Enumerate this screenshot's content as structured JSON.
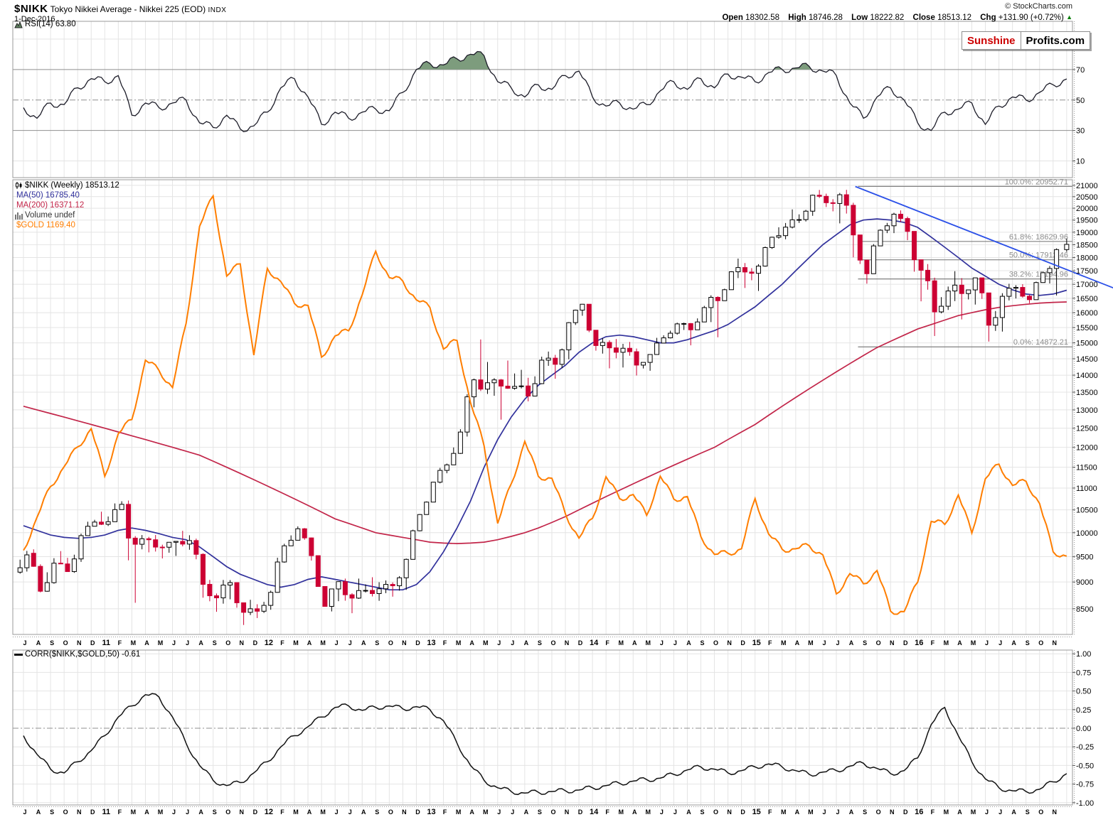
{
  "header": {
    "symbol": "$NIKK",
    "title": "Tokyo Nikkei Average - Nikkei 225 (EOD)",
    "exchange": "INDX",
    "date": "1-Dec-2016",
    "copyright": "© StockCharts.com",
    "ohlc": {
      "open_label": "Open",
      "open": "18302.58",
      "high_label": "High",
      "high": "18746.28",
      "low_label": "Low",
      "low": "18222.82",
      "close_label": "Close",
      "close": "18513.12",
      "chg_label": "Chg",
      "chg": "+131.90 (+0.72%)",
      "direction": "▲"
    }
  },
  "logo": {
    "red": "Sunshine",
    "black": "Profits.com"
  },
  "legends": {
    "rsi": "RSI(14) 63.80",
    "nikk": "$NIKK (Weekly) 18513.12",
    "ma50": "MA(50) 16785.40",
    "ma200": "MA(200) 16371.12",
    "volume": "Volume undef",
    "gold": "$GOLD 1169.40",
    "corr": "CORR($NIKK,$GOLD,50) -0.61"
  },
  "colors": {
    "grid": "#e4e4e4",
    "panel_border": "#999999",
    "guide": "#8f8f8f",
    "down_candle": "#cc0033",
    "candle_outline": "#000000",
    "up_candle_fill": "#ffffff",
    "ma50": "#31319c",
    "ma200": "#c22549",
    "gold": "#ff7e00",
    "trendline": "#2b50e8",
    "rsi_line": "#1c1c28",
    "rsi_fill": "#7d9c7d",
    "corr_line": "#111111",
    "fib": "#808080",
    "fib_text": "#8c8c8c",
    "change_up": "#067d06",
    "logo_red": "#cc0000",
    "nikk_text": "#000000",
    "volume_text": "#333333"
  },
  "chart_data": {
    "type": "candlestick",
    "title": "$NIKK (Weekly) with MA(50), MA(200), $GOLD overlay, RSI(14) and CORR($NIKK,$GOLD,50)",
    "x_axis": {
      "start": "Jul-2010",
      "end": "Dec-2016",
      "month_labels": [
        "J",
        "A",
        "S",
        "O",
        "N",
        "D",
        "11",
        "F",
        "M",
        "A",
        "M",
        "J",
        "J",
        "A",
        "S",
        "O",
        "N",
        "D",
        "12",
        "F",
        "M",
        "A",
        "M",
        "J",
        "J",
        "A",
        "S",
        "O",
        "N",
        "D",
        "13",
        "F",
        "M",
        "A",
        "M",
        "J",
        "J",
        "A",
        "S",
        "O",
        "N",
        "D",
        "14",
        "F",
        "M",
        "A",
        "M",
        "J",
        "J",
        "A",
        "S",
        "O",
        "N",
        "D",
        "15",
        "F",
        "M",
        "A",
        "M",
        "J",
        "J",
        "A",
        "S",
        "O",
        "N",
        "D",
        "16",
        "F",
        "M",
        "A",
        "M",
        "J",
        "J",
        "A",
        "S",
        "O",
        "N"
      ],
      "year_label_indices": [
        6,
        18,
        30,
        42,
        54,
        66
      ]
    },
    "last_candle_partial": true,
    "panels": {
      "rsi": {
        "label": "RSI(14)",
        "last_value": 63.8,
        "ylim": [
          0,
          100
        ],
        "ticks": [
          90,
          70,
          50,
          30,
          10
        ],
        "overbought": 70,
        "oversold": 30,
        "values": [
          45,
          38,
          48,
          47,
          58,
          64,
          62,
          66,
          40,
          48,
          45,
          48,
          50,
          35,
          32,
          40,
          31,
          33,
          42,
          58,
          64,
          52,
          34,
          42,
          38,
          42,
          44,
          43,
          55,
          70,
          74,
          73,
          77,
          80,
          79,
          62,
          58,
          52,
          60,
          57,
          66,
          69,
          52,
          46,
          48,
          44,
          47,
          56,
          62,
          57,
          64,
          58,
          67,
          65,
          62,
          68,
          70,
          71,
          72,
          69,
          66,
          48,
          38,
          52,
          58,
          50,
          35,
          30,
          42,
          44,
          48,
          34,
          46,
          52,
          50,
          55,
          60,
          63.8
        ]
      },
      "price": {
        "scale": "log",
        "ylim": [
          8046,
          21254
        ],
        "ticks": [
          21000,
          20500,
          20000,
          19500,
          19000,
          18500,
          18000,
          17500,
          17000,
          16500,
          16000,
          15500,
          15000,
          14500,
          14000,
          13500,
          13000,
          12500,
          12000,
          11500,
          11000,
          10500,
          10000,
          9500,
          9000,
          8500
        ],
        "ohlc_monthly": [
          [
            9191,
            9807,
            9091,
            9537
          ],
          [
            9570,
            9704,
            8796,
            8824
          ],
          [
            8824,
            9704,
            8797,
            9369
          ],
          [
            9369,
            9777,
            9202,
            9202
          ],
          [
            9202,
            10080,
            9123,
            9937
          ],
          [
            9937,
            10394,
            9937,
            10229
          ],
          [
            10229,
            10620,
            10180,
            10237
          ],
          [
            10237,
            10857,
            10238,
            10624
          ],
          [
            10624,
            10768,
            8227,
            9755
          ],
          [
            9755,
            9980,
            9406,
            9850
          ],
          [
            9850,
            10017,
            9388,
            9694
          ],
          [
            9694,
            9797,
            9318,
            9816
          ],
          [
            9816,
            10207,
            9660,
            9833
          ],
          [
            9833,
            9901,
            8619,
            8955
          ],
          [
            8955,
            9098,
            8359,
            8700
          ],
          [
            8700,
            9152,
            8343,
            8988
          ],
          [
            8988,
            8988,
            8135,
            8435
          ],
          [
            8435,
            8729,
            8272,
            8455
          ],
          [
            8455,
            8911,
            8349,
            8803
          ],
          [
            8803,
            9866,
            8784,
            9723
          ],
          [
            9723,
            10255,
            9723,
            10084
          ],
          [
            10084,
            10109,
            9388,
            9521
          ],
          [
            9521,
            9524,
            8543,
            8543
          ],
          [
            8543,
            9007,
            8238,
            9007
          ],
          [
            9007,
            9104,
            8328,
            8695
          ],
          [
            8695,
            9222,
            8647,
            8840
          ],
          [
            8840,
            9288,
            8661,
            8870
          ],
          [
            8870,
            9055,
            8596,
            8928
          ],
          [
            8928,
            9500,
            8619,
            9446
          ],
          [
            9446,
            10433,
            9429,
            10395
          ],
          [
            10395,
            11164,
            10398,
            11139
          ],
          [
            11139,
            11662,
            11046,
            11559
          ],
          [
            11559,
            12650,
            11542,
            12398
          ],
          [
            12398,
            13983,
            12003,
            13861
          ],
          [
            13861,
            15943,
            13589,
            13775
          ],
          [
            13775,
            13860,
            12415,
            13677
          ],
          [
            13677,
            14953,
            13613,
            13668
          ],
          [
            13668,
            14466,
            13188,
            13389
          ],
          [
            13389,
            14817,
            13369,
            14456
          ],
          [
            14456,
            14799,
            13748,
            14328
          ],
          [
            14328,
            15727,
            13932,
            15662
          ],
          [
            15662,
            16320,
            15407,
            16291
          ],
          [
            16291,
            16291,
            14699,
            14914
          ],
          [
            14914,
            15140,
            13995,
            14841
          ],
          [
            14841,
            15312,
            14203,
            14828
          ],
          [
            14828,
            15164,
            13885,
            14304
          ],
          [
            14304,
            14636,
            13964,
            14632
          ],
          [
            14632,
            15442,
            14632,
            15162
          ],
          [
            15162,
            15759,
            15101,
            15621
          ],
          [
            15621,
            15669,
            14753,
            15425
          ],
          [
            15425,
            16374,
            15425,
            16174
          ],
          [
            16174,
            16533,
            14529,
            16414
          ],
          [
            16414,
            17520,
            16414,
            17460
          ],
          [
            17460,
            18030,
            16672,
            17451
          ],
          [
            17451,
            17916,
            16592,
            17674
          ],
          [
            17674,
            18865,
            17606,
            18798
          ],
          [
            18798,
            19778,
            18604,
            19207
          ],
          [
            19207,
            20252,
            19034,
            19520
          ],
          [
            19520,
            20655,
            19257,
            20563
          ],
          [
            20563,
            20952,
            19990,
            20236
          ],
          [
            20236,
            20841,
            19115,
            20585
          ],
          [
            20585,
            20946,
            17714,
            18890
          ],
          [
            18890,
            18890,
            16901,
            17388
          ],
          [
            17388,
            19202,
            17388,
            19083
          ],
          [
            19083,
            19944,
            18683,
            19747
          ],
          [
            19747,
            20012,
            18562,
            19034
          ],
          [
            19034,
            19034,
            16017,
            17518
          ],
          [
            17518,
            17905,
            14953,
            16027
          ],
          [
            16027,
            17291,
            15857,
            16759
          ],
          [
            16759,
            17613,
            15471,
            16666
          ],
          [
            16666,
            17251,
            15975,
            17235
          ],
          [
            17235,
            17235,
            14864,
            15576
          ],
          [
            15576,
            16938,
            14952,
            16569
          ],
          [
            16569,
            17156,
            16083,
            16887
          ],
          [
            16887,
            17081,
            16285,
            16450
          ],
          [
            16450,
            17482,
            16436,
            17425
          ],
          [
            17425,
            18465,
            16111,
            18308
          ],
          [
            18308,
            18746,
            18222,
            18513
          ]
        ],
        "ma50": [
          10150,
          10050,
          9950,
          9900,
          9880,
          9900,
          9950,
          10050,
          10100,
          10050,
          9980,
          9900,
          9850,
          9700,
          9500,
          9300,
          9150,
          9050,
          8950,
          8900,
          8950,
          9050,
          9100,
          9050,
          9000,
          8950,
          8900,
          8850,
          8850,
          8950,
          9200,
          9600,
          10100,
          10700,
          11500,
          12200,
          12800,
          13300,
          13700,
          14000,
          14300,
          14700,
          15000,
          15200,
          15250,
          15200,
          15100,
          15000,
          15000,
          15100,
          15250,
          15400,
          15600,
          15900,
          16200,
          16600,
          17000,
          17500,
          18000,
          18500,
          18900,
          19300,
          19500,
          19550,
          19500,
          19400,
          19200,
          18800,
          18400,
          18000,
          17600,
          17300,
          17000,
          16800,
          16650,
          16600,
          16650,
          16785
        ],
        "ma200": [
          13100,
          13000,
          12900,
          12800,
          12700,
          12600,
          12500,
          12400,
          12300,
          12200,
          12100,
          12000,
          11900,
          11800,
          11650,
          11500,
          11350,
          11200,
          11050,
          10900,
          10750,
          10600,
          10450,
          10300,
          10200,
          10100,
          10000,
          9950,
          9900,
          9850,
          9800,
          9780,
          9770,
          9780,
          9800,
          9850,
          9920,
          10000,
          10100,
          10220,
          10350,
          10500,
          10650,
          10800,
          10950,
          11100,
          11250,
          11400,
          11550,
          11700,
          11850,
          12000,
          12200,
          12400,
          12600,
          12850,
          13100,
          13350,
          13600,
          13850,
          14100,
          14350,
          14600,
          14850,
          15050,
          15250,
          15450,
          15600,
          15750,
          15900,
          16000,
          16100,
          16180,
          16240,
          16290,
          16330,
          16355,
          16371
        ],
        "gold_overlay": {
          "name": "$GOLD",
          "last_value": 1169.4,
          "ylim": [
            1015,
            1912
          ],
          "values": [
            1181,
            1246,
            1307,
            1346,
            1385,
            1421,
            1327,
            1411,
            1439,
            1556,
            1536,
            1502,
            1628,
            1820,
            1880,
            1722,
            1746,
            1566,
            1737,
            1711,
            1668,
            1664,
            1562,
            1604,
            1614,
            1685,
            1771,
            1719,
            1712,
            1675,
            1660,
            1578,
            1595,
            1472,
            1387,
            1234,
            1312,
            1396,
            1327,
            1323,
            1253,
            1205,
            1244,
            1326,
            1283,
            1291,
            1250,
            1327,
            1282,
            1287,
            1208,
            1173,
            1175,
            1184,
            1283,
            1213,
            1183,
            1184,
            1190,
            1172,
            1095,
            1135,
            1115,
            1141,
            1061,
            1060,
            1118,
            1238,
            1232,
            1290,
            1215,
            1322,
            1351,
            1309,
            1317,
            1273,
            1178,
            1169.4
          ]
        },
        "fib_levels": [
          {
            "label": "100.0%: 20952.71",
            "price": 20952.71
          },
          {
            "label": "61.8%: 18629.96",
            "price": 18629.96
          },
          {
            "label": "50.0%: 17912.46",
            "price": 17912.46
          },
          {
            "label": "38.2%: 17194.96",
            "price": 17194.96
          },
          {
            "label": "0.0%: 14872.21",
            "price": 14872.21
          }
        ],
        "fib_x_start_month": 61.6,
        "trendline": {
          "m1": 61.4,
          "p1": 20950,
          "m2": 80.8,
          "p2": 16800
        }
      },
      "corr": {
        "label": "CORR($NIKK,$GOLD,50)",
        "last_value": -0.61,
        "ylim": [
          -1.05,
          1.05
        ],
        "ticks": [
          "1.00",
          "0.75",
          "0.50",
          "0.25",
          "0.00",
          "-0.25",
          "-0.50",
          "-0.75",
          "-1.00"
        ],
        "values": [
          -0.1,
          -0.35,
          -0.55,
          -0.6,
          -0.45,
          -0.3,
          -0.1,
          0.15,
          0.3,
          0.45,
          0.42,
          0.15,
          -0.2,
          -0.5,
          -0.7,
          -0.77,
          -0.73,
          -0.6,
          -0.45,
          -0.25,
          -0.1,
          0.02,
          0.15,
          0.28,
          0.3,
          0.24,
          0.28,
          0.3,
          0.26,
          0.29,
          0.25,
          0.1,
          -0.2,
          -0.5,
          -0.7,
          -0.8,
          -0.85,
          -0.87,
          -0.86,
          -0.85,
          -0.84,
          -0.83,
          -0.8,
          -0.77,
          -0.74,
          -0.71,
          -0.69,
          -0.67,
          -0.62,
          -0.56,
          -0.52,
          -0.55,
          -0.6,
          -0.57,
          -0.52,
          -0.48,
          -0.52,
          -0.57,
          -0.62,
          -0.59,
          -0.57,
          -0.51,
          -0.47,
          -0.54,
          -0.61,
          -0.57,
          -0.4,
          0.05,
          0.28,
          -0.1,
          -0.45,
          -0.68,
          -0.8,
          -0.84,
          -0.85,
          -0.82,
          -0.72,
          -0.61
        ]
      }
    }
  }
}
